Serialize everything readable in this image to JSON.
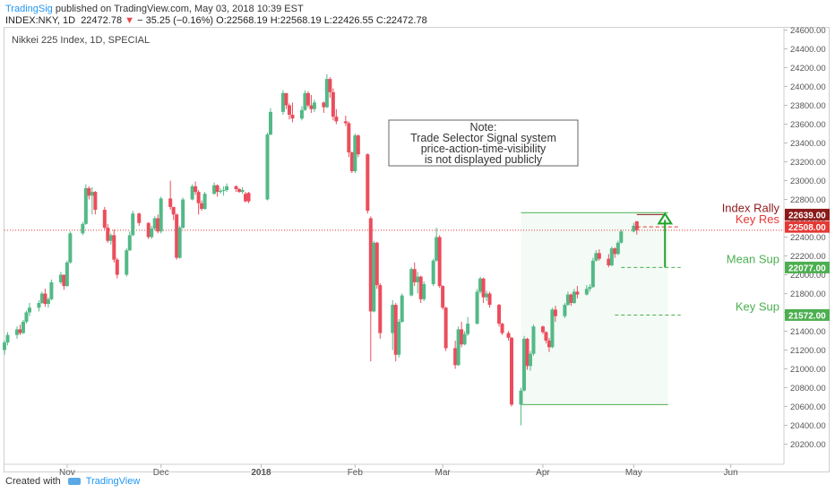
{
  "header": {
    "publisher": "TradingSig",
    "published_text": "published on TradingView.com, May 03, 2018 10:39 EST",
    "symbol": "INDEX:NKY, 1D",
    "last": "22472.78",
    "change": "− 35.25 (−0.16%)",
    "open": "O:22568.19",
    "high": "H:22568.19",
    "low": "L:22426.55",
    "close": "C:22472.78"
  },
  "chart_title": "Nikkei 225 Index, 1D, SPECIAL",
  "footer": {
    "created_with": "Created with",
    "brand": "TradingView"
  },
  "colors": {
    "up": "#53b987",
    "down": "#eb4d5c",
    "green_line": "#4caf50",
    "red_line": "#e53935",
    "dark_red": "#8b1a1a"
  },
  "chart_data": {
    "type": "candlestick",
    "title": "Nikkei 225 Index, 1D, SPECIAL",
    "ylim": [
      20100,
      24700
    ],
    "y_ticks": [
      "24600.00",
      "24400.00",
      "24200.00",
      "24000.00",
      "23800.00",
      "23600.00",
      "23400.00",
      "23200.00",
      "23000.00",
      "22800.00",
      "22600.00",
      "22400.00",
      "22200.00",
      "22000.00",
      "21800.00",
      "21600.00",
      "21400.00",
      "21200.00",
      "21000.00",
      "20800.00",
      "20600.00",
      "20400.00",
      "20200.00"
    ],
    "x_ticks": [
      {
        "label": "Nov",
        "date": "2017-11-01"
      },
      {
        "label": "Dec",
        "date": "2017-12-01"
      },
      {
        "label": "2018",
        "date": "2018-01-02"
      },
      {
        "label": "Feb",
        "date": "2018-02-01"
      },
      {
        "label": "Mar",
        "date": "2018-03-01"
      },
      {
        "label": "Apr",
        "date": "2018-04-02"
      },
      {
        "label": "May",
        "date": "2018-05-01"
      },
      {
        "label": "Jun",
        "date": "2018-06-01"
      }
    ],
    "xlim": [
      "2017-10-12",
      "2018-06-18"
    ],
    "last_price": 22472.78,
    "price_labels": [
      {
        "value": 22639.0,
        "text": "22639.00",
        "color": "#8b1a1a"
      },
      {
        "value": 22508.0,
        "text": "22508.00",
        "color": "#e53935"
      },
      {
        "value": 22077.0,
        "text": "22077.00",
        "color": "#4caf50"
      },
      {
        "value": 21572.0,
        "text": "21572.00",
        "color": "#4caf50"
      }
    ],
    "annotations": [
      {
        "text": "Index Rally",
        "color": "#8b1a1a"
      },
      {
        "text": "Key Res",
        "color": "#e53935"
      },
      {
        "text": "Mean Sup",
        "color": "#4caf50"
      },
      {
        "text": "Key Sup",
        "color": "#4caf50"
      }
    ],
    "note_lines": [
      "Note:",
      "Trade Selector Signal system",
      "price-action-time-visibility",
      "is not displayed publicly"
    ],
    "levels": {
      "index_rally": {
        "value": 22639,
        "from": "2018-05-02",
        "to": "2018-05-11"
      },
      "key_res": {
        "value": 22508,
        "from": "2018-05-02",
        "to": "2018-05-16"
      },
      "mean_sup": {
        "value": 22077,
        "from": "2018-04-27",
        "to": "2018-05-16"
      },
      "key_sup": {
        "value": 21572,
        "from": "2018-04-25",
        "to": "2018-05-16"
      },
      "range_top": {
        "value": 22660,
        "from": "2018-03-26",
        "to": "2018-05-12"
      },
      "range_bottom": {
        "value": 20620,
        "from": "2018-03-26",
        "to": "2018-05-12"
      },
      "arrow": {
        "from": 22077,
        "to": 22639,
        "date": "2018-05-11"
      }
    },
    "candles": [
      [
        "2017-10-12",
        21200,
        21300,
        21150,
        21280
      ],
      [
        "2017-10-13",
        21280,
        21390,
        21250,
        21360
      ],
      [
        "2017-10-16",
        21360,
        21450,
        21320,
        21420
      ],
      [
        "2017-10-17",
        21420,
        21470,
        21360,
        21380
      ],
      [
        "2017-10-18",
        21380,
        21520,
        21370,
        21500
      ],
      [
        "2017-10-19",
        21500,
        21620,
        21480,
        21600
      ],
      [
        "2017-10-20",
        21600,
        21700,
        21560,
        21650
      ],
      [
        "2017-10-23",
        21650,
        21730,
        21610,
        21700
      ],
      [
        "2017-10-24",
        21700,
        21820,
        21690,
        21800
      ],
      [
        "2017-10-25",
        21800,
        21850,
        21660,
        21690
      ],
      [
        "2017-10-26",
        21690,
        21760,
        21650,
        21740
      ],
      [
        "2017-10-27",
        21740,
        21950,
        21730,
        21920
      ],
      [
        "2017-10-30",
        21920,
        22030,
        21900,
        22000
      ],
      [
        "2017-10-31",
        22000,
        21990,
        21840,
        21880
      ],
      [
        "2017-11-01",
        21880,
        22150,
        21870,
        22130
      ],
      [
        "2017-11-02",
        22130,
        22460,
        22120,
        22440
      ],
      [
        "2017-11-06",
        22440,
        22560,
        22420,
        22540
      ],
      [
        "2017-11-07",
        22540,
        22960,
        22530,
        22920
      ],
      [
        "2017-11-08",
        22920,
        22940,
        22800,
        22840
      ],
      [
        "2017-11-09",
        22840,
        22930,
        22640,
        22880
      ],
      [
        "2017-11-10",
        22880,
        22890,
        22640,
        22690
      ],
      [
        "2017-11-13",
        22690,
        22720,
        22480,
        22500
      ],
      [
        "2017-11-14",
        22500,
        22540,
        22340,
        22360
      ],
      [
        "2017-11-15",
        22360,
        22440,
        22320,
        22420
      ],
      [
        "2017-11-16",
        22420,
        22480,
        22130,
        22160
      ],
      [
        "2017-11-17",
        22160,
        22180,
        21960,
        22000
      ],
      [
        "2017-11-20",
        22000,
        22280,
        21980,
        22260
      ],
      [
        "2017-11-21",
        22260,
        22460,
        22250,
        22420
      ],
      [
        "2017-11-22",
        22420,
        22680,
        22410,
        22650
      ],
      [
        "2017-11-24",
        22650,
        22660,
        22520,
        22550
      ],
      [
        "2017-11-27",
        22550,
        22560,
        22380,
        22400
      ],
      [
        "2017-11-28",
        22400,
        22520,
        22380,
        22490
      ],
      [
        "2017-11-29",
        22490,
        22620,
        22470,
        22600
      ],
      [
        "2017-11-30",
        22600,
        22640,
        22440,
        22460
      ],
      [
        "2017-12-01",
        22460,
        22830,
        22440,
        22810
      ],
      [
        "2017-12-04",
        22810,
        23000,
        22690,
        22720
      ],
      [
        "2017-12-05",
        22720,
        22720,
        22580,
        22640
      ],
      [
        "2017-12-06",
        22640,
        22650,
        22160,
        22180
      ],
      [
        "2017-12-07",
        22180,
        22520,
        22170,
        22500
      ],
      [
        "2017-12-08",
        22500,
        22820,
        22490,
        22800
      ],
      [
        "2017-12-11",
        22800,
        22960,
        22790,
        22940
      ],
      [
        "2017-12-12",
        22940,
        22990,
        22850,
        22880
      ],
      [
        "2017-12-13",
        22880,
        22900,
        22640,
        22760
      ],
      [
        "2017-12-14",
        22760,
        22790,
        22680,
        22700
      ],
      [
        "2017-12-15",
        22700,
        22880,
        22690,
        22860
      ],
      [
        "2017-12-18",
        22860,
        22980,
        22850,
        22950
      ],
      [
        "2017-12-19",
        22950,
        22960,
        22830,
        22880
      ],
      [
        "2017-12-20",
        22880,
        22920,
        22860,
        22890
      ],
      [
        "2017-12-21",
        22890,
        22940,
        22840,
        22900
      ],
      [
        "2017-12-22",
        22900,
        22970,
        22880,
        22940
      ],
      [
        "2017-12-25",
        22940,
        22950,
        22880,
        22910
      ],
      [
        "2017-12-26",
        22910,
        22920,
        22870,
        22880
      ],
      [
        "2017-12-27",
        22880,
        22930,
        22860,
        22900
      ],
      [
        "2017-12-28",
        22860,
        22880,
        22770,
        22780
      ],
      [
        "2017-12-29",
        22870,
        22880,
        22760,
        22780
      ],
      [
        "2018-01-04",
        22800,
        23510,
        22790,
        23490
      ],
      [
        "2018-01-05",
        23490,
        23770,
        23480,
        23730
      ],
      [
        "2018-01-09",
        23730,
        23960,
        23700,
        23930
      ],
      [
        "2018-01-10",
        23930,
        23920,
        23760,
        23800
      ],
      [
        "2018-01-11",
        23800,
        23820,
        23650,
        23700
      ],
      [
        "2018-01-12",
        23700,
        23830,
        23620,
        23660
      ],
      [
        "2018-01-15",
        23660,
        23790,
        23640,
        23750
      ],
      [
        "2018-01-16",
        23750,
        23960,
        23740,
        23930
      ],
      [
        "2018-01-17",
        23930,
        23950,
        23780,
        23800
      ],
      [
        "2018-01-18",
        23800,
        23910,
        23720,
        23760
      ],
      [
        "2018-01-19",
        23760,
        23860,
        23730,
        23830
      ],
      [
        "2018-01-22",
        23830,
        23840,
        23720,
        23780
      ],
      [
        "2018-01-23",
        23780,
        24130,
        23770,
        24080
      ],
      [
        "2018-01-24",
        24080,
        24100,
        23880,
        23940
      ],
      [
        "2018-01-25",
        23940,
        23980,
        23640,
        23680
      ],
      [
        "2018-01-26",
        23680,
        23760,
        23600,
        23630
      ],
      [
        "2018-01-29",
        23630,
        23690,
        23580,
        23610
      ],
      [
        "2018-01-30",
        23610,
        23630,
        23250,
        23300
      ],
      [
        "2018-01-31",
        23300,
        23310,
        23080,
        23100
      ],
      [
        "2018-02-01",
        23100,
        23500,
        23080,
        23480
      ],
      [
        "2018-02-02",
        23480,
        23490,
        23250,
        23280
      ],
      [
        "2018-02-05",
        23280,
        23290,
        22650,
        22680
      ],
      [
        "2018-02-06",
        22600,
        22620,
        21080,
        21610
      ],
      [
        "2018-02-07",
        21610,
        22360,
        21600,
        22340
      ],
      [
        "2018-02-08",
        22340,
        22350,
        21850,
        21890
      ],
      [
        "2018-02-09",
        21890,
        21910,
        21320,
        21380
      ],
      [
        "2018-02-13",
        21380,
        21730,
        21200,
        21680
      ],
      [
        "2018-02-14",
        21680,
        21700,
        21080,
        21150
      ],
      [
        "2018-02-15",
        21150,
        21530,
        21120,
        21500
      ],
      [
        "2018-02-16",
        21500,
        21800,
        21490,
        21780
      ],
      [
        "2018-02-19",
        21780,
        22080,
        21770,
        22060
      ],
      [
        "2018-02-20",
        22060,
        22130,
        21880,
        21920
      ],
      [
        "2018-02-21",
        21920,
        22030,
        21800,
        21980
      ],
      [
        "2018-02-22",
        21980,
        21990,
        21700,
        21740
      ],
      [
        "2018-02-23",
        21740,
        21930,
        21720,
        21900
      ],
      [
        "2018-02-26",
        21900,
        22170,
        21880,
        22150
      ],
      [
        "2018-02-27",
        22150,
        22500,
        22140,
        22400
      ],
      [
        "2018-02-28",
        22400,
        22420,
        21860,
        21880
      ],
      [
        "2018-03-01",
        21880,
        21890,
        21630,
        21650
      ],
      [
        "2018-03-02",
        21650,
        21660,
        21190,
        21220
      ],
      [
        "2018-03-05",
        21220,
        21300,
        21000,
        21040
      ],
      [
        "2018-03-06",
        21040,
        21450,
        21030,
        21420
      ],
      [
        "2018-03-07",
        21420,
        21500,
        21230,
        21260
      ],
      [
        "2018-03-08",
        21260,
        21400,
        21250,
        21370
      ],
      [
        "2018-03-09",
        21370,
        21550,
        21350,
        21480
      ],
      [
        "2018-03-12",
        21480,
        21850,
        21470,
        21820
      ],
      [
        "2018-03-13",
        21820,
        21980,
        21800,
        21960
      ],
      [
        "2018-03-14",
        21960,
        21970,
        21700,
        21760
      ],
      [
        "2018-03-15",
        21760,
        21830,
        21720,
        21800
      ],
      [
        "2018-03-16",
        21800,
        21820,
        21650,
        21680
      ],
      [
        "2018-03-19",
        21680,
        21690,
        21450,
        21480
      ],
      [
        "2018-03-20",
        21480,
        21490,
        21360,
        21380
      ],
      [
        "2018-03-22",
        21380,
        21400,
        21300,
        21330
      ],
      [
        "2018-03-23",
        21330,
        21340,
        20600,
        20620
      ],
      [
        "2018-03-26",
        20620,
        20800,
        20400,
        20770
      ],
      [
        "2018-03-27",
        20770,
        21350,
        20760,
        21320
      ],
      [
        "2018-03-28",
        21320,
        21330,
        20990,
        21030
      ],
      [
        "2018-03-29",
        21030,
        21190,
        20980,
        21160
      ],
      [
        "2018-03-30",
        21160,
        21470,
        21140,
        21450
      ],
      [
        "2018-04-02",
        21450,
        21460,
        21370,
        21390
      ],
      [
        "2018-04-03",
        21390,
        21400,
        21270,
        21300
      ],
      [
        "2018-04-04",
        21300,
        21330,
        21180,
        21230
      ],
      [
        "2018-04-05",
        21230,
        21650,
        21220,
        21630
      ],
      [
        "2018-04-06",
        21630,
        21670,
        21500,
        21560
      ],
      [
        "2018-04-09",
        21560,
        21700,
        21540,
        21680
      ],
      [
        "2018-04-10",
        21680,
        21820,
        21670,
        21790
      ],
      [
        "2018-04-11",
        21790,
        21800,
        21670,
        21700
      ],
      [
        "2018-04-12",
        21700,
        21850,
        21690,
        21820
      ],
      [
        "2018-04-13",
        21820,
        21880,
        21750,
        21790
      ],
      [
        "2018-04-16",
        21790,
        21890,
        21780,
        21850
      ],
      [
        "2018-04-17",
        21850,
        21900,
        21820,
        21870
      ],
      [
        "2018-04-18",
        21870,
        22180,
        21860,
        22150
      ],
      [
        "2018-04-19",
        22150,
        22260,
        22140,
        22230
      ],
      [
        "2018-04-20",
        22230,
        22270,
        22150,
        22170
      ],
      [
        "2018-04-23",
        22170,
        22220,
        22080,
        22100
      ],
      [
        "2018-04-24",
        22100,
        22300,
        22090,
        22280
      ],
      [
        "2018-04-25",
        22280,
        22290,
        22180,
        22220
      ],
      [
        "2018-04-26",
        22220,
        22360,
        22210,
        22340
      ],
      [
        "2018-04-27",
        22340,
        22480,
        22330,
        22460
      ],
      [
        "2018-05-01",
        22460,
        22550,
        22450,
        22520
      ],
      [
        "2018-05-02",
        22568.19,
        22568.19,
        22426.55,
        22472.78
      ]
    ]
  }
}
